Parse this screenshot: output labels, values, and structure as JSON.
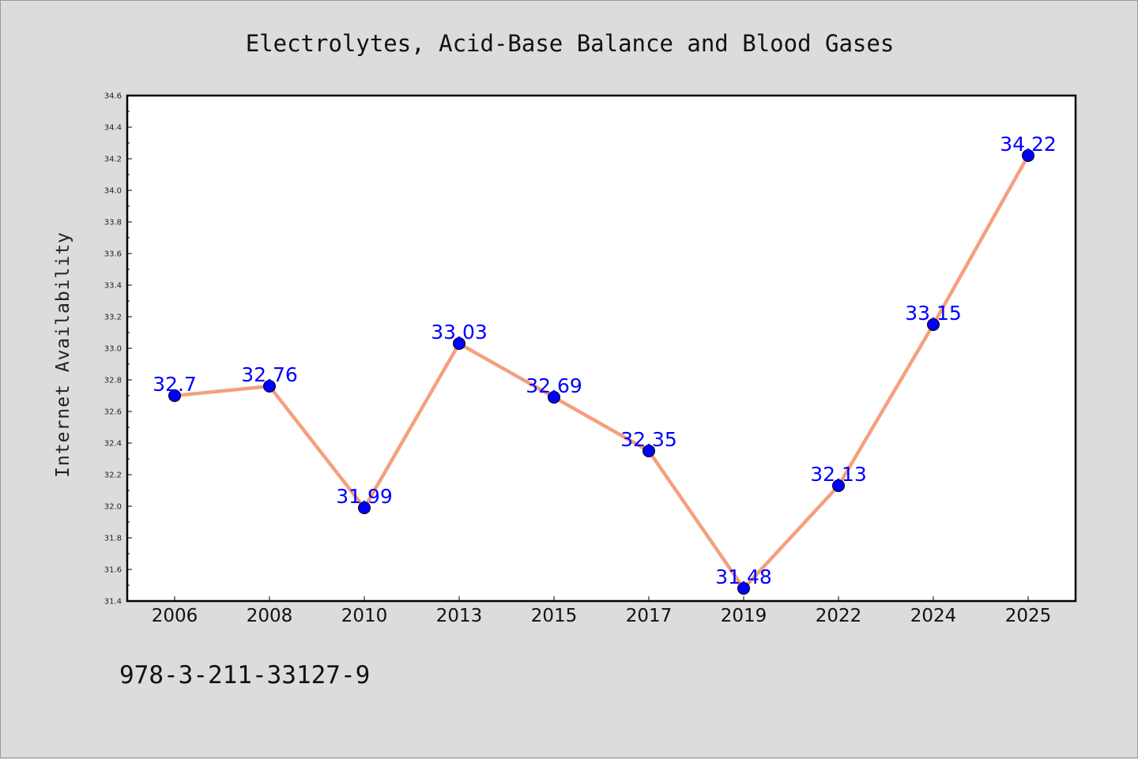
{
  "footer_text": "978-3-211-33127-9",
  "colors": {
    "background": "#dcdcdc",
    "plot_background": "#ffffff",
    "line": "#f4a07e",
    "marker": "#0000ff",
    "data_label": "#0000ff"
  },
  "chart_data": {
    "type": "line",
    "title": "Electrolytes, Acid-Base Balance and Blood Gases",
    "xlabel": "",
    "ylabel": "Internet Availability",
    "categories": [
      "2006",
      "2008",
      "2010",
      "2013",
      "2015",
      "2017",
      "2019",
      "2022",
      "2024",
      "2025"
    ],
    "series": [
      {
        "values": [
          32.7,
          32.76,
          31.99,
          33.03,
          32.69,
          32.35,
          31.48,
          32.13,
          33.15,
          34.22
        ],
        "labels": [
          "32.7",
          "32.76",
          "31.99",
          "33.03",
          "32.69",
          "32.35",
          "31.48",
          "32.13",
          "33.15",
          "34.22"
        ]
      }
    ],
    "ylim": [
      31.4,
      34.6
    ],
    "yticks": [
      "31.4",
      "31.6",
      "31.8",
      "32.0",
      "32.2",
      "32.4",
      "32.6",
      "32.8",
      "33.0",
      "33.2",
      "33.4",
      "33.6",
      "33.8",
      "34.0",
      "34.2",
      "34.4",
      "34.6"
    ],
    "grid": false,
    "legend": "none"
  }
}
